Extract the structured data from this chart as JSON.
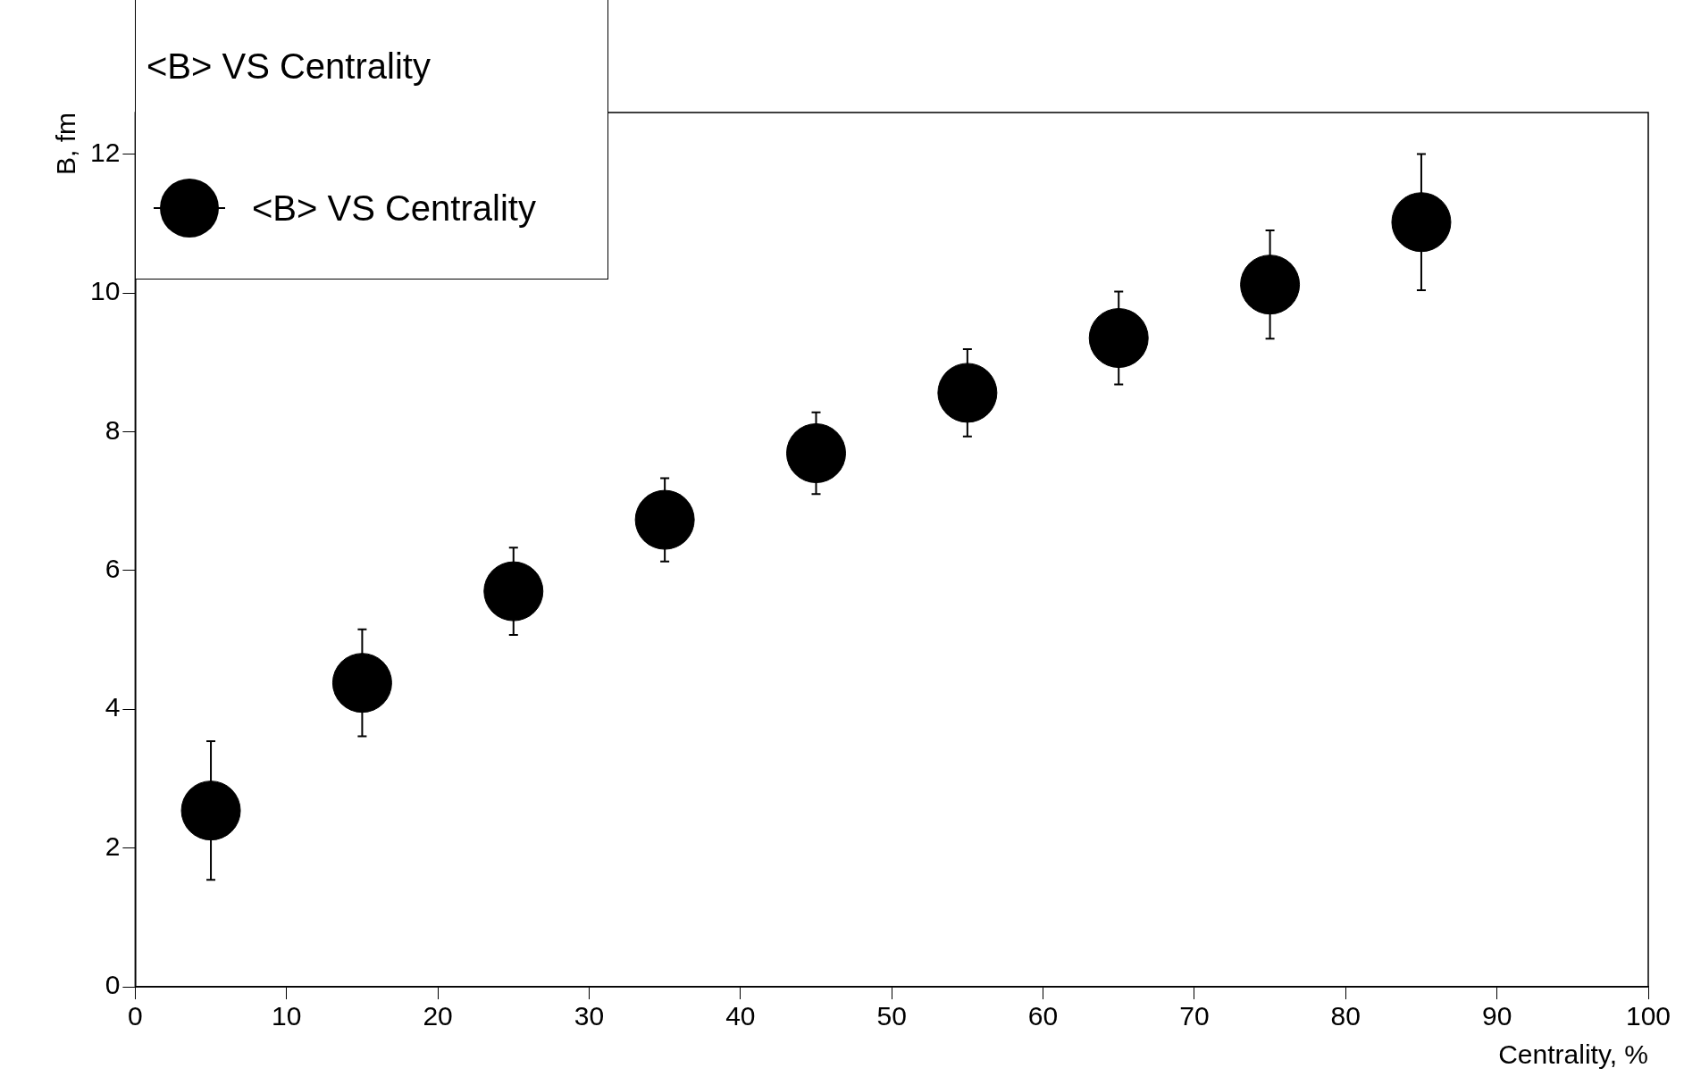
{
  "chart_data": {
    "type": "scatter",
    "title": "<B> VS Centrality",
    "xlabel": "Centrality, %",
    "ylabel": "B, fm",
    "x": [
      5,
      15,
      25,
      35,
      45,
      55,
      65,
      75,
      85
    ],
    "series": [
      {
        "name": "<B> VS Centrality",
        "color": "#000000",
        "values": [
          2.54,
          4.38,
          5.7,
          6.73,
          7.69,
          8.56,
          9.35,
          10.12,
          11.02
        ],
        "errors": [
          1,
          0.77,
          0.63,
          0.6,
          0.59,
          0.63,
          0.67,
          0.78,
          0.98
        ]
      }
    ],
    "xlim": [
      0,
      100
    ],
    "xticks": [
      0,
      10,
      20,
      30,
      40,
      50,
      60,
      70,
      80,
      90,
      100
    ],
    "ylim": [
      0,
      12.6
    ],
    "yticks": [
      0,
      2,
      4,
      6,
      8,
      10,
      12
    ],
    "legend": "top left",
    "marker": "circle"
  }
}
